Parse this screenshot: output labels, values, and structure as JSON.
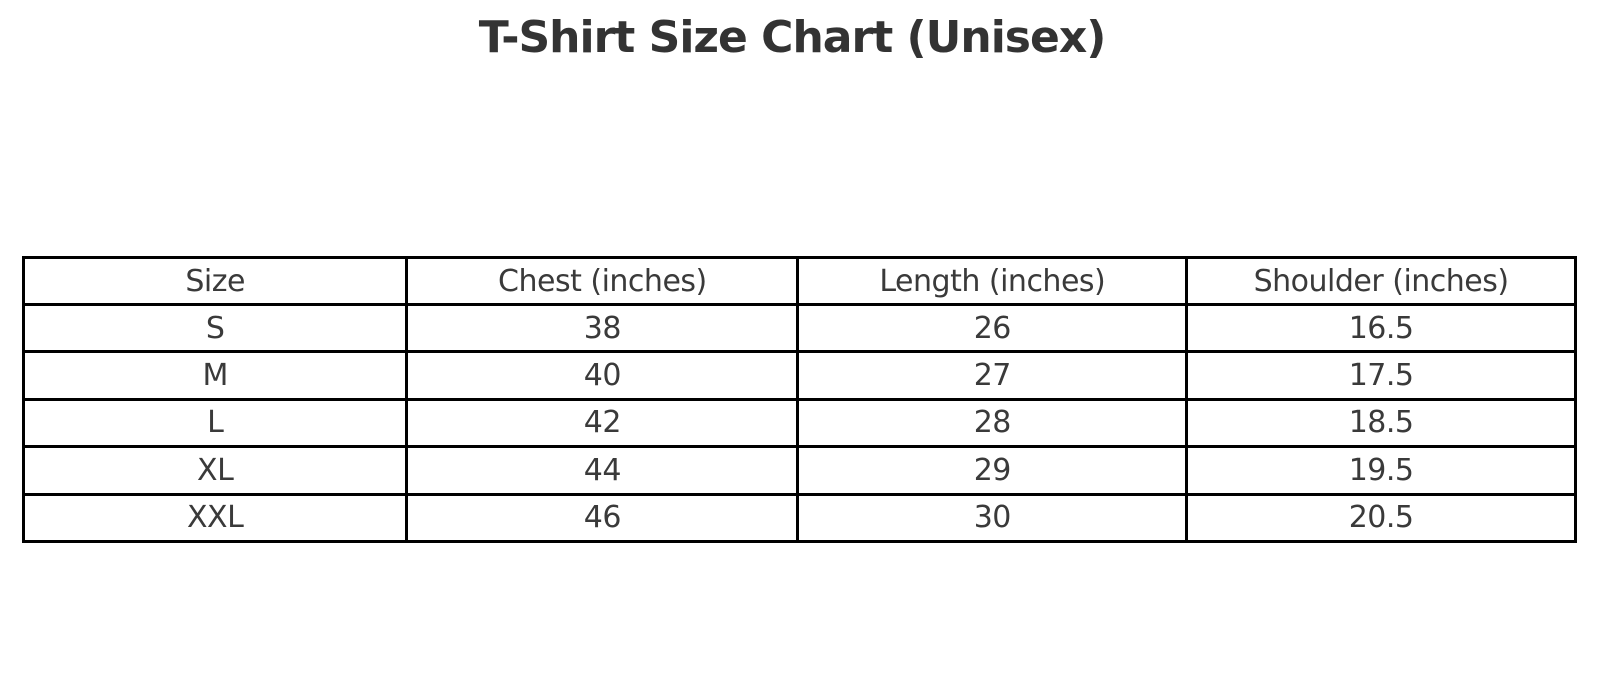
{
  "title": "T-Shirt Size Chart (Unisex)",
  "colors": {
    "background": "#ffffff",
    "title_text": "#333333",
    "cell_text": "#3a3a3a",
    "table_border": "#000000"
  },
  "chart_data": {
    "type": "table",
    "title": "T-Shirt Size Chart (Unisex)",
    "columns": [
      "Size",
      "Chest (inches)",
      "Length (inches)",
      "Shoulder (inches)"
    ],
    "rows": [
      [
        "S",
        "38",
        "26",
        "16.5"
      ],
      [
        "M",
        "40",
        "27",
        "17.5"
      ],
      [
        "L",
        "42",
        "28",
        "18.5"
      ],
      [
        "XL",
        "44",
        "29",
        "19.5"
      ],
      [
        "XXL",
        "46",
        "30",
        "20.5"
      ]
    ],
    "layout": {
      "title_position": "top-center",
      "cell_alignment": "center",
      "grid": "all-borders"
    }
  }
}
